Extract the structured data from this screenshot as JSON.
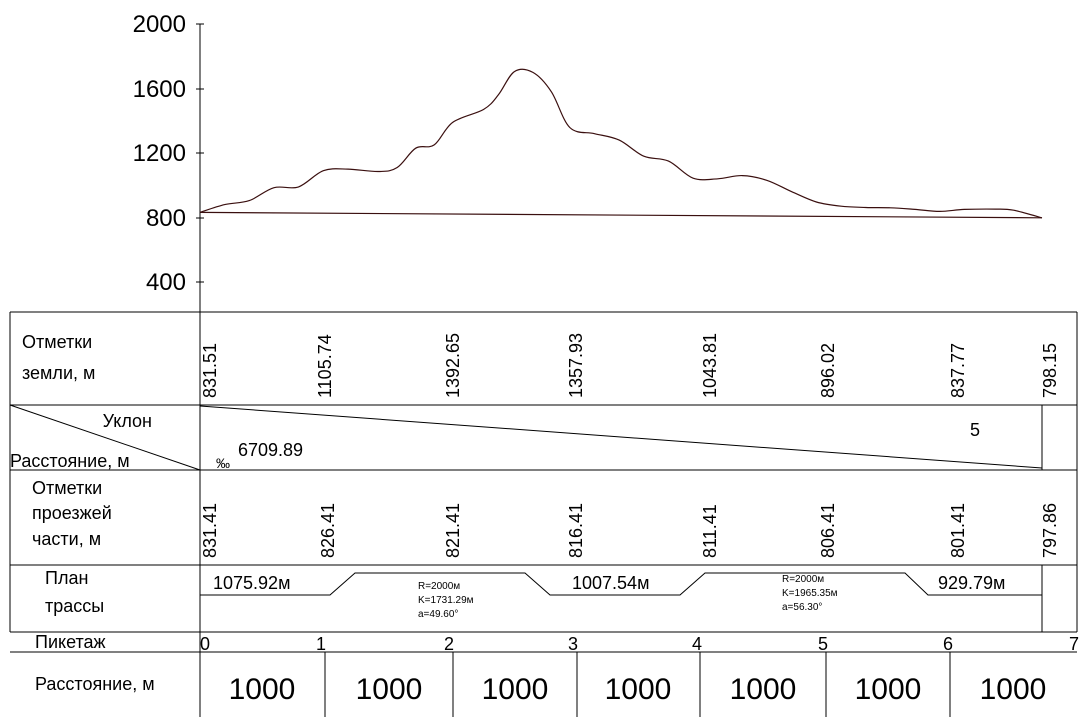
{
  "y_axis": {
    "ticks": [
      "2000",
      "1600",
      "1200",
      "800",
      "400"
    ],
    "values": [
      2000,
      1600,
      1200,
      800,
      400
    ]
  },
  "chart_data": {
    "type": "line",
    "y_ticks": [
      2000,
      1600,
      1200,
      800,
      400
    ],
    "ylim": [
      200,
      2000
    ],
    "xlim": [
      0,
      6.83
    ],
    "series": [
      {
        "points": [
          [
            0,
            831.51
          ],
          [
            0.2,
            880
          ],
          [
            0.4,
            905
          ],
          [
            0.6,
            985
          ],
          [
            0.8,
            990
          ],
          [
            1.0,
            1090
          ],
          [
            1.2,
            1100
          ],
          [
            1.45,
            1085
          ],
          [
            1.6,
            1110
          ],
          [
            1.75,
            1230
          ],
          [
            1.9,
            1250
          ],
          [
            2.05,
            1390
          ],
          [
            2.3,
            1470
          ],
          [
            2.42,
            1560
          ],
          [
            2.55,
            1705
          ],
          [
            2.7,
            1700
          ],
          [
            2.85,
            1580
          ],
          [
            3.0,
            1357.93
          ],
          [
            3.2,
            1320
          ],
          [
            3.4,
            1280
          ],
          [
            3.6,
            1180
          ],
          [
            3.8,
            1150
          ],
          [
            4.0,
            1043.81
          ],
          [
            4.2,
            1040
          ],
          [
            4.4,
            1060
          ],
          [
            4.6,
            1030
          ],
          [
            4.8,
            960
          ],
          [
            5.0,
            896.02
          ],
          [
            5.2,
            870
          ],
          [
            5.4,
            862
          ],
          [
            5.6,
            860
          ],
          [
            5.8,
            850
          ],
          [
            6.0,
            837.77
          ],
          [
            6.2,
            850
          ],
          [
            6.45,
            852
          ],
          [
            6.6,
            845
          ],
          [
            6.83,
            798.15
          ]
        ]
      },
      {
        "points": [
          [
            0,
            831.41
          ],
          [
            6.83,
            797.86
          ]
        ]
      }
    ]
  },
  "table": {
    "ground": {
      "label_line1": "Отметки",
      "label_line2": "земли, м",
      "values": [
        "831.51",
        "1105.74",
        "1392.65",
        "1357.93",
        "1043.81",
        "896.02",
        "837.77",
        "798.15"
      ]
    },
    "slope": {
      "label_top": "Уклон",
      "label_bottom": "Расстояние, м",
      "permille": "‰",
      "distance": "6709.89",
      "value": "5"
    },
    "road": {
      "label_line1": "Отметки",
      "label_line2": "проезжей",
      "label_line3": "части, м",
      "values": [
        "831.41",
        "826.41",
        "821.41",
        "816.41",
        "811.41",
        "806.41",
        "801.41",
        "797.86"
      ]
    },
    "plan": {
      "label_line1": "План",
      "label_line2": "трассы",
      "straights": [
        "1075.92м",
        "1007.54м",
        "929.79м"
      ],
      "curve1": {
        "r": "R=2000м",
        "k": "K=1731.29м",
        "a": "a=49.60°"
      },
      "curve2": {
        "r": "R=2000м",
        "k": "K=1965.35м",
        "a": "a=56.30°"
      }
    },
    "piket": {
      "label": "Пикетаж",
      "values": [
        "0",
        "1",
        "2",
        "3",
        "4",
        "5",
        "6",
        "7"
      ]
    },
    "distance": {
      "label": "Расстояние, м",
      "values": [
        "1000",
        "1000",
        "1000",
        "1000",
        "1000",
        "1000",
        "1000"
      ]
    }
  }
}
